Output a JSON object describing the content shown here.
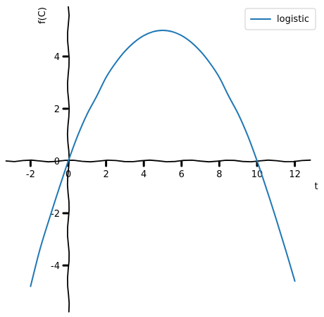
{
  "chart_data": {
    "type": "line",
    "title": "",
    "xlabel": "t",
    "ylabel": "f(C)",
    "xlim": [
      -3.3,
      13.1
    ],
    "ylim": [
      -5.8,
      5.9
    ],
    "grid": false,
    "legend_position": "top-right",
    "x_ticks": [
      -2,
      0,
      2,
      4,
      6,
      8,
      10,
      12
    ],
    "x_tick_labels": [
      "-2",
      "0",
      "2",
      "4",
      "6",
      "8",
      "10",
      "12"
    ],
    "y_ticks": [
      -4,
      -2,
      0,
      2,
      4
    ],
    "y_tick_labels": [
      "-4",
      "-2",
      "0",
      "2",
      "4"
    ],
    "series": [
      {
        "name": "logistic",
        "color": "#1f77b4",
        "x": [
          -2,
          -1.5,
          -1,
          -0.5,
          0,
          0.5,
          1,
          1.5,
          2,
          2.5,
          3,
          3.5,
          4,
          4.5,
          5,
          5.5,
          6,
          6.5,
          7,
          7.5,
          8,
          8.5,
          9,
          9.5,
          10,
          10.5,
          11,
          11.5,
          12
        ],
        "y": [
          -4.8,
          -3.375,
          -2.2,
          -1.075,
          0,
          0.975,
          1.8,
          2.475,
          3.2,
          3.75,
          4.2,
          4.55,
          4.8,
          4.95,
          5.0,
          4.95,
          4.8,
          4.55,
          4.2,
          3.75,
          3.2,
          2.475,
          1.8,
          0.975,
          0,
          -1.075,
          -2.2,
          -3.375,
          -4.6
        ]
      }
    ]
  }
}
